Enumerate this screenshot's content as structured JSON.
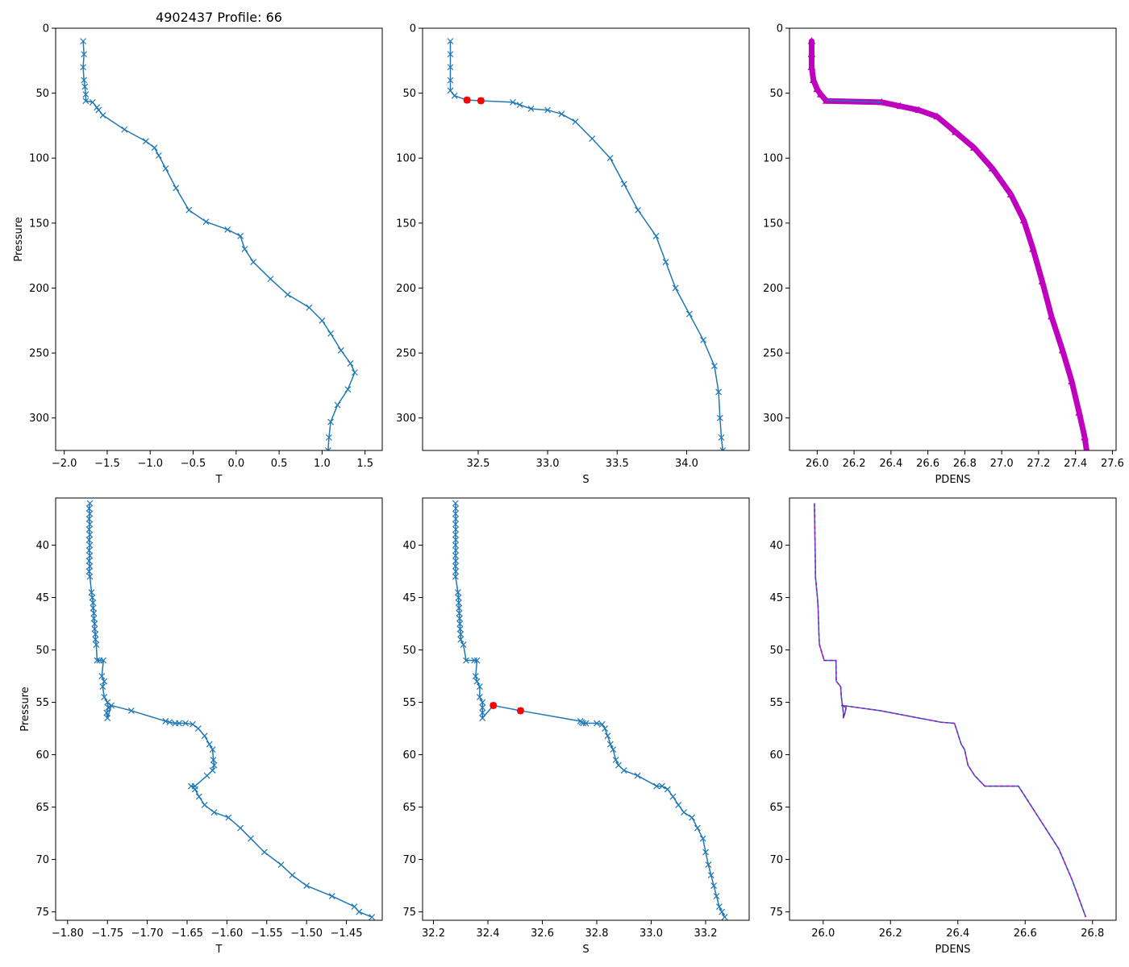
{
  "figure_title": "4902437 Profile: 66",
  "colors": {
    "line": "#1f77b4",
    "magenta": "#bf00bf",
    "marker_red": "#ff0000",
    "axis": "#000000"
  },
  "chart_data": [
    {
      "id": "top-temperature",
      "type": "line",
      "title": "4902437 Profile: 66",
      "xlabel": "T",
      "ylabel": "Pressure",
      "xlim": [
        -2.1,
        1.7
      ],
      "ylim": [
        325,
        0
      ],
      "xticks": [
        -2.0,
        -1.5,
        -1.0,
        -0.5,
        0.0,
        0.5,
        1.0,
        1.5
      ],
      "xtick_labels": [
        "−2.0",
        "−1.5",
        "−1.0",
        "−0.5",
        "0.0",
        "0.5",
        "1.0",
        "1.5"
      ],
      "yticks": [
        0,
        50,
        100,
        150,
        200,
        250,
        300
      ],
      "ytick_labels": [
        "0",
        "50",
        "100",
        "150",
        "200",
        "250",
        "300"
      ],
      "series": [
        {
          "name": "temperature",
          "style": "line-x",
          "color": "#1f77b4",
          "x": [
            -1.78,
            -1.77,
            -1.78,
            -1.77,
            -1.76,
            -1.75,
            -1.75,
            -1.67,
            -1.62,
            -1.6,
            -1.55,
            -1.3,
            -1.05,
            -0.95,
            -0.9,
            -0.82,
            -0.7,
            -0.55,
            -0.35,
            -0.1,
            0.05,
            0.1,
            0.2,
            0.4,
            0.6,
            0.85,
            1.0,
            1.1,
            1.22,
            1.33,
            1.38,
            1.3,
            1.18,
            1.1,
            1.08,
            1.07
          ],
          "y": [
            10,
            20,
            30,
            40,
            45,
            51,
            56,
            57,
            61,
            63,
            67,
            78,
            87,
            92,
            98,
            108,
            123,
            140,
            149,
            155,
            160,
            170,
            180,
            193,
            205,
            215,
            225,
            235,
            248,
            258,
            265,
            278,
            290,
            303,
            315,
            325
          ]
        }
      ]
    },
    {
      "id": "top-salinity",
      "type": "line",
      "xlabel": "S",
      "ylabel": "",
      "xlim": [
        32.1,
        34.45
      ],
      "ylim": [
        325,
        0
      ],
      "xticks": [
        32.5,
        33.0,
        33.5,
        34.0
      ],
      "xtick_labels": [
        "32.5",
        "33.0",
        "33.5",
        "34.0"
      ],
      "yticks": [
        0,
        50,
        100,
        150,
        200,
        250,
        300
      ],
      "ytick_labels": [
        "0",
        "50",
        "100",
        "150",
        "200",
        "250",
        "300"
      ],
      "series": [
        {
          "name": "salinity",
          "style": "line-x",
          "color": "#1f77b4",
          "x": [
            32.3,
            32.3,
            32.3,
            32.3,
            32.3,
            32.33,
            32.42,
            32.52,
            32.75,
            32.8,
            32.88,
            33.0,
            33.1,
            33.2,
            33.32,
            33.45,
            33.55,
            33.65,
            33.78,
            33.85,
            33.92,
            34.02,
            34.12,
            34.2,
            34.23,
            34.24,
            34.25,
            34.26
          ],
          "y": [
            10,
            20,
            30,
            40,
            48,
            52,
            55.3,
            55.8,
            57,
            59,
            62,
            63,
            66,
            72,
            85,
            100,
            120,
            140,
            160,
            180,
            200,
            220,
            240,
            260,
            280,
            300,
            315,
            325
          ]
        },
        {
          "name": "highlight",
          "style": "points",
          "color": "#ff0000",
          "x": [
            32.42,
            32.52
          ],
          "y": [
            55.3,
            55.8
          ]
        }
      ]
    },
    {
      "id": "top-density",
      "type": "line",
      "xlabel": "PDENS",
      "ylabel": "",
      "xlim": [
        25.85,
        27.62
      ],
      "ylim": [
        325,
        0
      ],
      "xticks": [
        26.0,
        26.2,
        26.4,
        26.6,
        26.8,
        27.0,
        27.2,
        27.4,
        27.6
      ],
      "xtick_labels": [
        "26.0",
        "26.2",
        "26.4",
        "26.6",
        "26.8",
        "27.0",
        "27.2",
        "27.4",
        "27.6"
      ],
      "yticks": [
        0,
        50,
        100,
        150,
        200,
        250,
        300
      ],
      "ytick_labels": [
        "0",
        "50",
        "100",
        "150",
        "200",
        "250",
        "300"
      ],
      "series": [
        {
          "name": "density",
          "style": "magenta-thick",
          "color": "#bf00bf",
          "x": [
            25.97,
            25.97,
            25.97,
            25.98,
            26.0,
            26.02,
            26.05,
            26.35,
            26.45,
            26.55,
            26.65,
            26.75,
            26.85,
            26.95,
            27.05,
            27.12,
            27.17,
            27.22,
            27.27,
            27.33,
            27.38,
            27.42,
            27.45,
            27.46
          ],
          "y": [
            10,
            20,
            30,
            40,
            47,
            51,
            56,
            57,
            60,
            63,
            68,
            80,
            92,
            108,
            128,
            148,
            170,
            195,
            222,
            248,
            272,
            296,
            315,
            325
          ]
        },
        {
          "name": "density-connector",
          "style": "line",
          "color": "#1f77b4",
          "x": [
            26.05,
            26.35
          ],
          "y": [
            55.3,
            57
          ]
        }
      ]
    },
    {
      "id": "bottom-temperature",
      "type": "line",
      "xlabel": "T",
      "ylabel": "Pressure",
      "xlim": [
        -1.815,
        -1.405
      ],
      "ylim": [
        75.8,
        35.5
      ],
      "xticks": [
        -1.8,
        -1.75,
        -1.7,
        -1.65,
        -1.6,
        -1.55,
        -1.5,
        -1.45
      ],
      "xtick_labels": [
        "−1.80",
        "−1.75",
        "−1.70",
        "−1.65",
        "−1.60",
        "−1.55",
        "−1.50",
        "−1.45"
      ],
      "yticks": [
        40,
        45,
        50,
        55,
        60,
        65,
        70,
        75
      ],
      "ytick_labels": [
        "40",
        "45",
        "50",
        "55",
        "60",
        "65",
        "70",
        "75"
      ],
      "series": [
        {
          "name": "temperature",
          "style": "line-x",
          "color": "#1f77b4",
          "x": [
            -1.772,
            -1.773,
            -1.772,
            -1.773,
            -1.772,
            -1.773,
            -1.772,
            -1.773,
            -1.772,
            -1.773,
            -1.772,
            -1.773,
            -1.772,
            -1.773,
            -1.772,
            -1.77,
            -1.769,
            -1.768,
            -1.768,
            -1.767,
            -1.767,
            -1.766,
            -1.766,
            -1.765,
            -1.765,
            -1.764,
            -1.763,
            -1.76,
            -1.755,
            -1.757,
            -1.754,
            -1.756,
            -1.754,
            -1.75,
            -1.749,
            -1.751,
            -1.75,
            -1.745,
            -1.72,
            -1.677,
            -1.672,
            -1.665,
            -1.66,
            -1.652,
            -1.643,
            -1.636,
            -1.628,
            -1.622,
            -1.618,
            -1.617,
            -1.616,
            -1.618,
            -1.625,
            -1.64,
            -1.645,
            -1.64,
            -1.635,
            -1.628,
            -1.616,
            -1.598,
            -1.583,
            -1.57,
            -1.553,
            -1.532,
            -1.518,
            -1.5,
            -1.468,
            -1.44,
            -1.434,
            -1.418
          ],
          "y": [
            36,
            36.5,
            37,
            37.5,
            38,
            38.5,
            39,
            39.5,
            40,
            40.5,
            41,
            41.5,
            42,
            42.5,
            43,
            44.5,
            45,
            45.5,
            46,
            46.5,
            47,
            47.5,
            48,
            48.5,
            49,
            49.5,
            51,
            51,
            51,
            52.5,
            53,
            53.5,
            54.5,
            55,
            55.5,
            56,
            56.5,
            55.3,
            55.8,
            56.8,
            56.9,
            57,
            57,
            57,
            57.1,
            57.5,
            58.2,
            59,
            59.5,
            60.5,
            61,
            61.5,
            62,
            63,
            63,
            63.3,
            64,
            64.8,
            65.5,
            66,
            67,
            68,
            69.3,
            70.5,
            71.5,
            72.5,
            73.5,
            74.5,
            75,
            75.5
          ]
        }
      ]
    },
    {
      "id": "bottom-salinity",
      "type": "line",
      "xlabel": "S",
      "ylabel": "",
      "xlim": [
        32.16,
        33.36
      ],
      "ylim": [
        75.8,
        35.5
      ],
      "xticks": [
        32.2,
        32.4,
        32.6,
        32.8,
        33.0,
        33.2
      ],
      "xtick_labels": [
        "32.2",
        "32.4",
        "32.6",
        "32.8",
        "33.0",
        "33.2"
      ],
      "yticks": [
        40,
        45,
        50,
        55,
        60,
        65,
        70,
        75
      ],
      "ytick_labels": [
        "40",
        "45",
        "50",
        "55",
        "60",
        "65",
        "70",
        "75"
      ],
      "series": [
        {
          "name": "salinity",
          "style": "line-x",
          "color": "#1f77b4",
          "x": [
            32.281,
            32.282,
            32.281,
            32.282,
            32.281,
            32.282,
            32.281,
            32.282,
            32.281,
            32.282,
            32.281,
            32.282,
            32.281,
            32.282,
            32.281,
            32.29,
            32.292,
            32.293,
            32.294,
            32.295,
            32.296,
            32.297,
            32.298,
            32.3,
            32.3,
            32.31,
            32.32,
            32.35,
            32.36,
            32.355,
            32.36,
            32.37,
            32.37,
            32.38,
            32.38,
            32.38,
            32.38,
            32.42,
            32.52,
            32.74,
            32.745,
            32.75,
            32.76,
            32.8,
            32.82,
            32.83,
            32.84,
            32.85,
            32.86,
            32.87,
            32.88,
            32.9,
            32.95,
            33.02,
            33.04,
            33.06,
            33.08,
            33.1,
            33.12,
            33.15,
            33.17,
            33.19,
            33.2,
            33.21,
            33.22,
            33.23,
            33.24,
            33.25,
            33.26,
            33.27
          ],
          "y": [
            36,
            36.5,
            37,
            37.5,
            38,
            38.5,
            39,
            39.5,
            40,
            40.5,
            41,
            41.5,
            42,
            42.5,
            43,
            44.5,
            45,
            45.5,
            46,
            46.5,
            47,
            47.5,
            48,
            48.5,
            49,
            49.5,
            51,
            51,
            51,
            52.5,
            53,
            53.5,
            54.5,
            55,
            55.5,
            56,
            56.5,
            55.3,
            55.8,
            56.8,
            56.9,
            57,
            57,
            57,
            57.1,
            57.5,
            58.2,
            59,
            59.5,
            60.5,
            61,
            61.5,
            62,
            63,
            63,
            63.3,
            64,
            64.8,
            65.5,
            66,
            67,
            68,
            69.3,
            70.5,
            71.5,
            72.5,
            73.5,
            74.5,
            75,
            75.5
          ]
        },
        {
          "name": "highlight",
          "style": "points",
          "color": "#ff0000",
          "x": [
            32.42,
            32.52
          ],
          "y": [
            55.3,
            55.8
          ]
        }
      ]
    },
    {
      "id": "bottom-density",
      "type": "line",
      "xlabel": "PDENS",
      "ylabel": "",
      "xlim": [
        25.9,
        26.87
      ],
      "ylim": [
        75.8,
        35.5
      ],
      "xticks": [
        26.0,
        26.2,
        26.4,
        26.6,
        26.8
      ],
      "xtick_labels": [
        "26.0",
        "26.2",
        "26.4",
        "26.6",
        "26.8"
      ],
      "yticks": [
        40,
        45,
        50,
        55,
        60,
        65,
        70,
        75
      ],
      "ytick_labels": [
        "40",
        "45",
        "50",
        "55",
        "60",
        "65",
        "70",
        "75"
      ],
      "series": [
        {
          "name": "density",
          "style": "blue-magenta-dashed",
          "color": "#1f77b4",
          "x": [
            25.974,
            25.975,
            25.976,
            25.977,
            25.977,
            25.983,
            25.985,
            25.986,
            25.987,
            25.988,
            25.989,
            26.003,
            26.038,
            26.039,
            26.052,
            26.054,
            26.056,
            26.058,
            26.06,
            26.06,
            26.065,
            26.068,
            26.055,
            26.08,
            26.17,
            26.35,
            26.39,
            26.4,
            26.41,
            26.42,
            26.43,
            26.45,
            26.48,
            26.51,
            26.58,
            26.62,
            26.66,
            26.7,
            26.74,
            26.78
          ],
          "y": [
            36,
            38,
            40,
            42,
            43,
            45,
            46,
            47,
            48,
            49,
            49.5,
            51,
            51,
            53,
            53.5,
            54.5,
            55,
            55.5,
            56,
            56.5,
            56,
            55.5,
            55.3,
            55.4,
            55.8,
            56.9,
            57,
            58,
            59,
            59.5,
            61,
            62,
            63,
            63,
            63,
            65,
            67,
            69,
            72,
            75.5
          ]
        }
      ]
    }
  ]
}
